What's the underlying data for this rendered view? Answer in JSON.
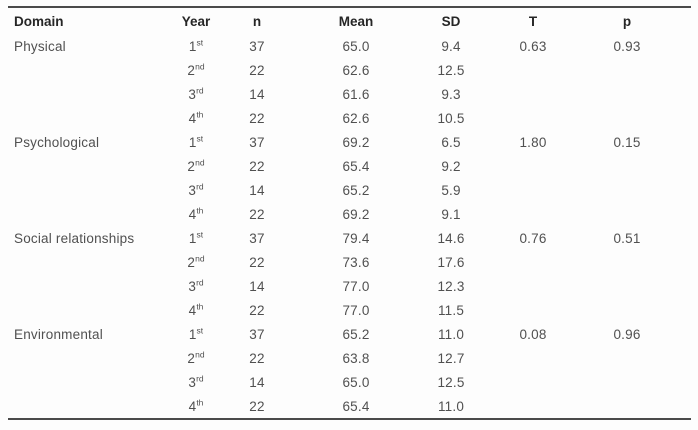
{
  "table": {
    "columns": [
      {
        "key": "domain",
        "label": "Domain"
      },
      {
        "key": "year",
        "label": "Year"
      },
      {
        "key": "n",
        "label": "n"
      },
      {
        "key": "mean",
        "label": "Mean"
      },
      {
        "key": "sd",
        "label": "SD"
      },
      {
        "key": "t",
        "label": "T"
      },
      {
        "key": "p",
        "label": "p"
      }
    ],
    "rows": [
      {
        "domain": "Physical",
        "year": "1",
        "year_sup": "st",
        "n": "37",
        "mean": "65.0",
        "sd": "9.4",
        "t": "0.63",
        "p": "0.93"
      },
      {
        "domain": "",
        "year": "2",
        "year_sup": "nd",
        "n": "22",
        "mean": "62.6",
        "sd": "12.5",
        "t": "",
        "p": ""
      },
      {
        "domain": "",
        "year": "3",
        "year_sup": "rd",
        "n": "14",
        "mean": "61.6",
        "sd": "9.3",
        "t": "",
        "p": ""
      },
      {
        "domain": "",
        "year": "4",
        "year_sup": "th",
        "n": "22",
        "mean": "62.6",
        "sd": "10.5",
        "t": "",
        "p": ""
      },
      {
        "domain": "Psychological",
        "year": "1",
        "year_sup": "st",
        "n": "37",
        "mean": "69.2",
        "sd": "6.5",
        "t": "1.80",
        "p": "0.15"
      },
      {
        "domain": "",
        "year": "2",
        "year_sup": "nd",
        "n": "22",
        "mean": "65.4",
        "sd": "9.2",
        "t": "",
        "p": ""
      },
      {
        "domain": "",
        "year": "3",
        "year_sup": "rd",
        "n": "14",
        "mean": "65.2",
        "sd": "5.9",
        "t": "",
        "p": ""
      },
      {
        "domain": "",
        "year": "4",
        "year_sup": "th",
        "n": "22",
        "mean": "69.2",
        "sd": "9.1",
        "t": "",
        "p": ""
      },
      {
        "domain": "Social relationships",
        "year": "1",
        "year_sup": "st",
        "n": "37",
        "mean": "79.4",
        "sd": "14.6",
        "t": "0.76",
        "p": "0.51"
      },
      {
        "domain": "",
        "year": "2",
        "year_sup": "nd",
        "n": "22",
        "mean": "73.6",
        "sd": "17.6",
        "t": "",
        "p": ""
      },
      {
        "domain": "",
        "year": "3",
        "year_sup": "rd",
        "n": "14",
        "mean": "77.0",
        "sd": "12.3",
        "t": "",
        "p": ""
      },
      {
        "domain": "",
        "year": "4",
        "year_sup": "th",
        "n": "22",
        "mean": "77.0",
        "sd": "11.5",
        "t": "",
        "p": ""
      },
      {
        "domain": "Environmental",
        "year": "1",
        "year_sup": "st",
        "n": "37",
        "mean": "65.2",
        "sd": "11.0",
        "t": "0.08",
        "p": "0.96"
      },
      {
        "domain": "",
        "year": "2",
        "year_sup": "nd",
        "n": "22",
        "mean": "63.8",
        "sd": "12.7",
        "t": "",
        "p": ""
      },
      {
        "domain": "",
        "year": "3",
        "year_sup": "rd",
        "n": "14",
        "mean": "65.0",
        "sd": "12.5",
        "t": "",
        "p": ""
      },
      {
        "domain": "",
        "year": "4",
        "year_sup": "th",
        "n": "22",
        "mean": "65.4",
        "sd": "11.0",
        "t": "",
        "p": ""
      }
    ],
    "colors": {
      "rule": "#4a4a4a",
      "header_text": "#262626",
      "body_text": "#505050",
      "background": "#fdfdfd"
    }
  }
}
